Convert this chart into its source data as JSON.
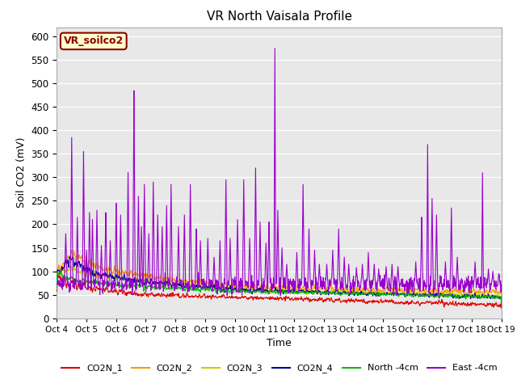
{
  "title": "VR North Vaisala Profile",
  "xlabel": "Time",
  "ylabel": "Soil CO2 (mV)",
  "ylim": [
    0,
    620
  ],
  "yticks": [
    0,
    50,
    100,
    150,
    200,
    250,
    300,
    350,
    400,
    450,
    500,
    550,
    600
  ],
  "plot_bg_color": "#e8e8e8",
  "annotation_text": "VR_soilco2",
  "annotation_bg": "#ffffcc",
  "annotation_border": "#8B0000",
  "legend_entries": [
    "CO2N_1",
    "CO2N_2",
    "CO2N_3",
    "CO2N_4",
    "North -4cm",
    "East -4cm"
  ],
  "line_colors": [
    "#dd0000",
    "#ff9900",
    "#cccc00",
    "#000099",
    "#00bb00",
    "#9900cc"
  ],
  "xtick_labels": [
    "Oct 4",
    "Oct 5",
    "Oct 6",
    "Oct 7",
    "Oct 8",
    "Oct 9",
    "Oct 10",
    "Oct 11",
    "Oct 12",
    "Oct 13",
    "Oct 14",
    "Oct 15",
    "Oct 16",
    "Oct 17",
    "Oct 18",
    "Oct 19"
  ],
  "xtick_positions": [
    0,
    1,
    2,
    3,
    4,
    5,
    6,
    7,
    8,
    9,
    10,
    11,
    12,
    13,
    14,
    15
  ],
  "num_points": 1500,
  "x_start": 0,
  "x_end": 15
}
